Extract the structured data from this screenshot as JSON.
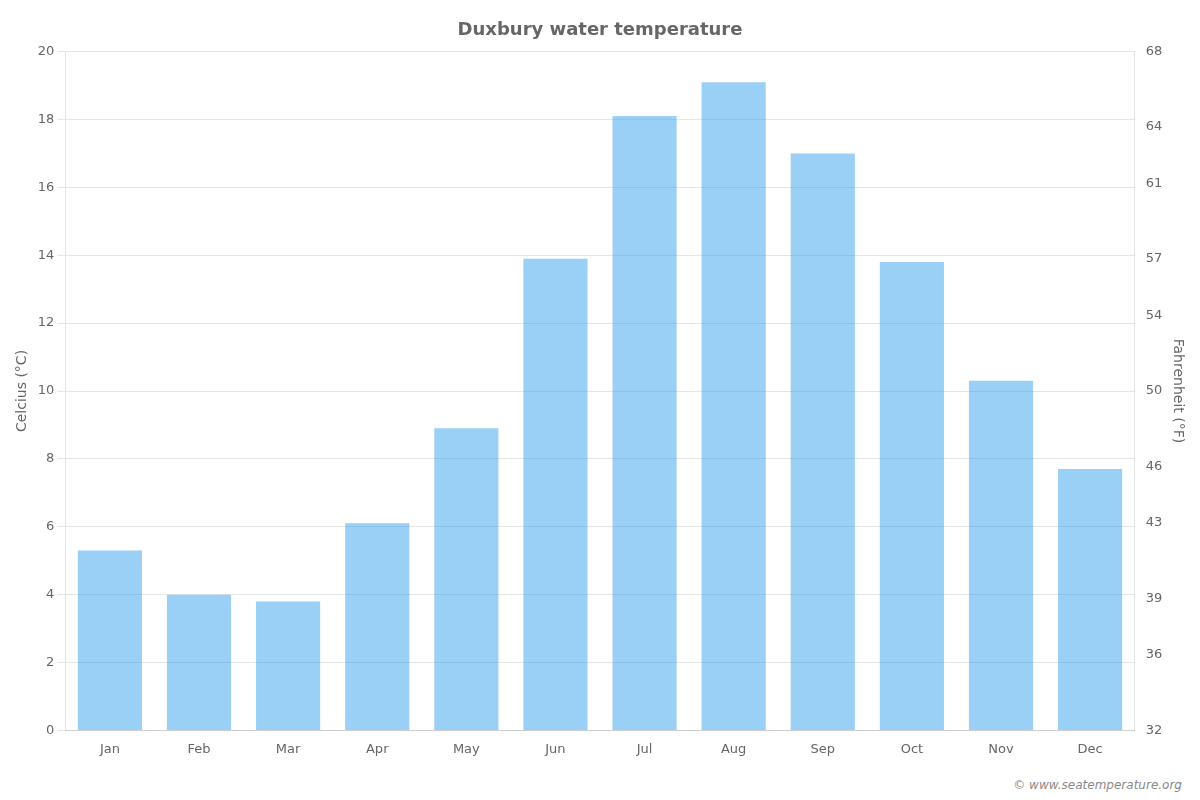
{
  "chart_data": {
    "type": "bar",
    "title": "Duxbury water temperature",
    "categories": [
      "Jan",
      "Feb",
      "Mar",
      "Apr",
      "May",
      "Jun",
      "Jul",
      "Aug",
      "Sep",
      "Oct",
      "Nov",
      "Dec"
    ],
    "values": [
      5.3,
      4.0,
      3.8,
      6.1,
      8.9,
      13.9,
      18.1,
      19.1,
      17.0,
      13.8,
      10.3,
      7.7
    ],
    "ylabel": "Celcius (°C)",
    "y2label": "Fahrenheit (°F)",
    "ylim": [
      0,
      20
    ],
    "yticks": [
      0,
      2,
      4,
      6,
      8,
      10,
      12,
      14,
      16,
      18,
      20
    ],
    "y2lim": [
      32,
      68
    ],
    "y2ticks": [
      32,
      36,
      39,
      43,
      46,
      50,
      54,
      57,
      61,
      64,
      68
    ],
    "annotation": "© www.seatemperature.org",
    "grid": true,
    "legend": false
  }
}
